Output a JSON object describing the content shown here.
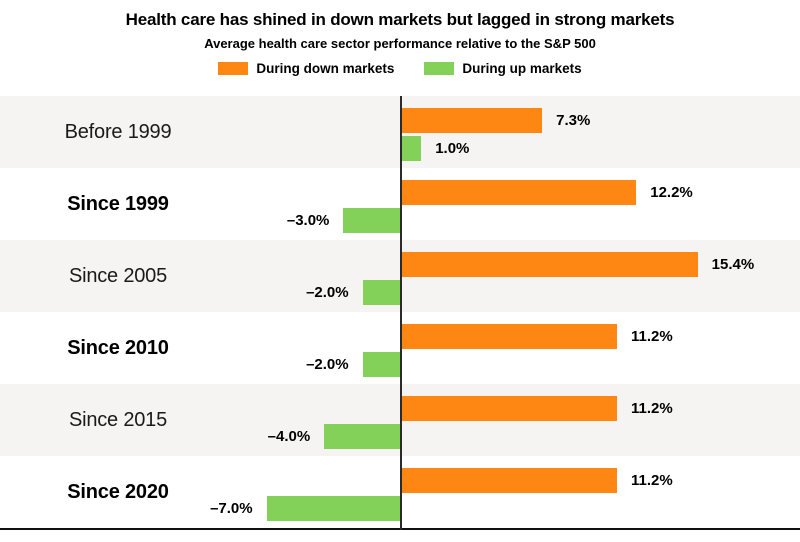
{
  "header": {
    "title": "Health care has shined in down markets but lagged in strong markets",
    "subtitle": "Average health care sector performance relative to the S&P 500"
  },
  "legend": {
    "down": {
      "prefix": "During ",
      "keyword": "down",
      "suffix": " markets",
      "color": "#fd8712"
    },
    "up": {
      "prefix": "During ",
      "keyword": "up",
      "suffix": " markets",
      "color": "#84d15a"
    }
  },
  "colors": {
    "down_bar": "#fd8712",
    "up_bar": "#84d15a",
    "stripe": "#f5f4f2",
    "axis": "#2a2a2a",
    "baseline": "#111111"
  },
  "chart_data": {
    "type": "bar",
    "orientation": "horizontal",
    "title": "Health care has shined in down markets but lagged in strong markets",
    "subtitle": "Average health care sector performance relative to the S&P 500",
    "categories": [
      "Before 1999",
      "Since 1999",
      "Since 2005",
      "Since 2010",
      "Since 2015",
      "Since 2020"
    ],
    "series": [
      {
        "name": "During down markets",
        "color": "#fd8712",
        "values": [
          7.3,
          12.2,
          15.4,
          11.2,
          11.2,
          11.2
        ]
      },
      {
        "name": "During up markets",
        "color": "#84d15a",
        "values": [
          1.0,
          -3.0,
          -2.0,
          -2.0,
          -4.0,
          -7.0
        ]
      }
    ],
    "value_labels": [
      [
        "7.3%",
        "1.0%"
      ],
      [
        "12.2%",
        "–3.0%"
      ],
      [
        "15.4%",
        "–2.0%"
      ],
      [
        "11.2%",
        "–2.0%"
      ],
      [
        "11.2%",
        "–4.0%"
      ],
      [
        "11.2%",
        "–7.0%"
      ]
    ],
    "xlim": [
      -21,
      21
    ],
    "gridlines": false,
    "legend_position": "top",
    "zero_line": true,
    "row_striping": true
  }
}
